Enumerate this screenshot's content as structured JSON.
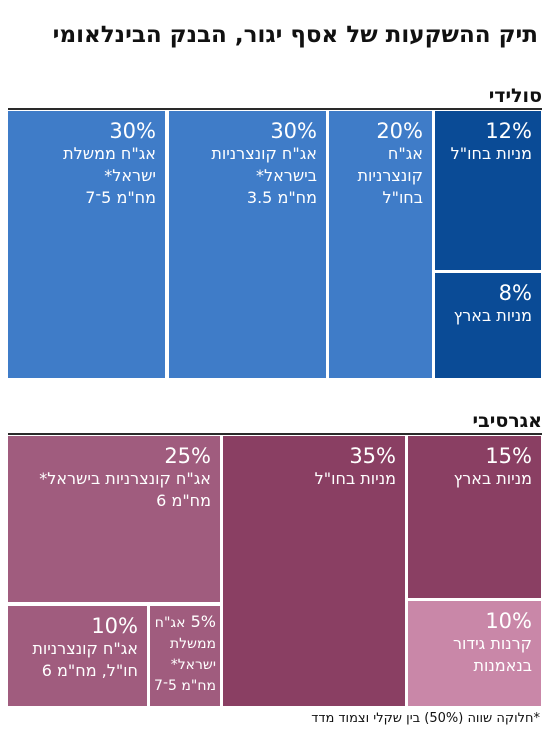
{
  "title": "תיק ההשקעות של אסף יגור, הבנק הבינלאומי",
  "footnote": "*חלוקה שווה (50%) בין שקלי וצמוד מדד",
  "colors": {
    "solid_light": "#3f7cc8",
    "solid_dark": "#0a4b96",
    "aggr_mid": "#a05c7e",
    "aggr_dark": "#8a3f63",
    "aggr_light": "#c987a8"
  },
  "chart_data": [
    {
      "type": "treemap",
      "name": "סולידי",
      "items": [
        {
          "label": "אג\"ח ממשלת\nישראל*\nמח\"מ 5־7",
          "value": 30,
          "value_label": "30%"
        },
        {
          "label": "אג\"ח קונצרניות\nבישראל*\nמח\"מ 3.5",
          "value": 30,
          "value_label": "30%"
        },
        {
          "label": "אג\"ח\nקונצרניות\nבחו\"ל",
          "value": 20,
          "value_label": "20%"
        },
        {
          "label": "מניות בחו\"ל",
          "value": 12,
          "value_label": "12%"
        },
        {
          "label": "מניות בארץ",
          "value": 8,
          "value_label": "8%"
        }
      ]
    },
    {
      "type": "treemap",
      "name": "אגרסיבי",
      "items": [
        {
          "label": "אג\"ח קונצרניות בישראל*\nמח\"מ 6",
          "value": 25,
          "value_label": "25%"
        },
        {
          "label": "מניות בחו\"ל",
          "value": 35,
          "value_label": "35%"
        },
        {
          "label": "מניות בארץ",
          "value": 15,
          "value_label": "15%"
        },
        {
          "label": "אג\"ח קונצרניות\nחו\"ל, מח\"מ 6",
          "value": 10,
          "value_label": "10%"
        },
        {
          "label": "אג\"ח\nממשלת\nישראל*\nמח\"מ 5־7",
          "value": 5,
          "value_label": "5%"
        },
        {
          "label": "קרנות גידור\nבנאמנות",
          "value": 10,
          "value_label": "10%"
        }
      ]
    }
  ]
}
